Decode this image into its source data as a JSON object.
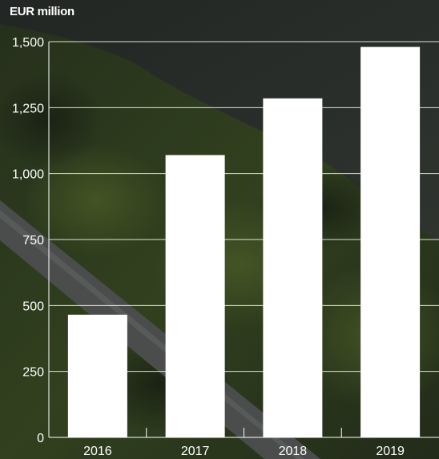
{
  "unit_label": "EUR million",
  "colors": {
    "bar": "#ffffff",
    "text": "#ffffff",
    "grid": "#ffffff"
  },
  "chart_data": {
    "type": "bar",
    "categories": [
      "2016",
      "2017",
      "2018",
      "2019"
    ],
    "values": [
      465,
      1070,
      1285,
      1480
    ],
    "title": "",
    "xlabel": "",
    "ylabel": "EUR million",
    "ylim": [
      0,
      1500
    ],
    "yticks": [
      0,
      250,
      500,
      750,
      1000,
      1250,
      1500
    ],
    "ytick_labels": [
      "0",
      "250",
      "500",
      "750",
      "1,000",
      "1,250",
      "1,500"
    ],
    "grid": true,
    "legend": "none"
  }
}
